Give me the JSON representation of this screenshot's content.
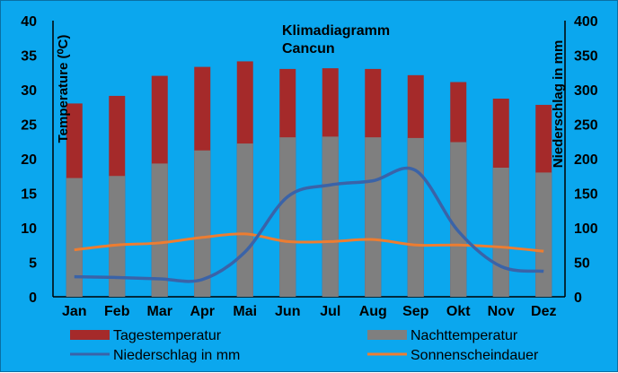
{
  "chart_data": {
    "type": "bar",
    "title": [
      "Klimadiagramm",
      "Cancun"
    ],
    "categories": [
      "Jan",
      "Feb",
      "Mar",
      "Apr",
      "Mai",
      "Jun",
      "Jul",
      "Aug",
      "Sep",
      "Okt",
      "Nov",
      "Dez"
    ],
    "y_left": {
      "label": "Temperature (⁰C)",
      "lim": [
        0,
        40
      ],
      "ticks": [
        0,
        5,
        10,
        15,
        20,
        25,
        30,
        35,
        40
      ]
    },
    "y_right": {
      "label": "Niederschlag in mm",
      "lim": [
        0,
        400
      ],
      "ticks": [
        0,
        50,
        100,
        150,
        200,
        250,
        300,
        350,
        400
      ]
    },
    "grid": false,
    "legend_position": "bottom",
    "series": [
      {
        "name": "Tagestemperatur",
        "type": "bar",
        "axis": "left",
        "color": "#a52a2a",
        "values": [
          28.0,
          29.1,
          32.0,
          33.3,
          34.1,
          33.0,
          33.1,
          33.0,
          32.1,
          31.1,
          28.7,
          27.8
        ]
      },
      {
        "name": "Nachttemperatur",
        "type": "bar",
        "axis": "left",
        "color": "#7f7f7f",
        "values": [
          17.2,
          17.5,
          19.3,
          21.2,
          22.2,
          23.1,
          23.2,
          23.1,
          23.0,
          22.4,
          18.7,
          18.0
        ]
      },
      {
        "name": "Niederschlag in mm",
        "type": "line",
        "axis": "right",
        "color": "#3a63a8",
        "values": [
          29,
          28,
          26,
          25,
          65,
          145,
          162,
          168,
          183,
          95,
          44,
          37
        ]
      },
      {
        "name": "Sonnenscheindauer",
        "type": "line",
        "axis": "left",
        "color": "#ed7d31",
        "values": [
          6.8,
          7.5,
          7.8,
          8.6,
          9.1,
          8.0,
          8.0,
          8.3,
          7.5,
          7.5,
          7.2,
          6.6
        ]
      }
    ]
  }
}
